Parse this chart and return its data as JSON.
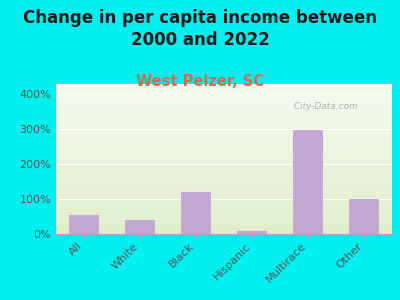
{
  "title": "Change in per capita income between\n2000 and 2022",
  "subtitle": "West Pelzer, SC",
  "categories": [
    "All",
    "White",
    "Black",
    "Hispanic",
    "Multirace",
    "Other"
  ],
  "values": [
    55,
    40,
    120,
    8,
    298,
    100
  ],
  "bar_color": "#c4a8d4",
  "background_outer": "#00f0f0",
  "background_inner_top": "#f5faf0",
  "background_inner_bottom": "#e0eecc",
  "title_fontsize": 12,
  "title_color": "#1a1a1a",
  "subtitle_fontsize": 10.5,
  "subtitle_color": "#c87050",
  "ytick_labels": [
    "0%",
    "100%",
    "200%",
    "300%",
    "400%"
  ],
  "ytick_values": [
    0,
    100,
    200,
    300,
    400
  ],
  "ylim": [
    0,
    430
  ],
  "watermark": " City-Data.com"
}
